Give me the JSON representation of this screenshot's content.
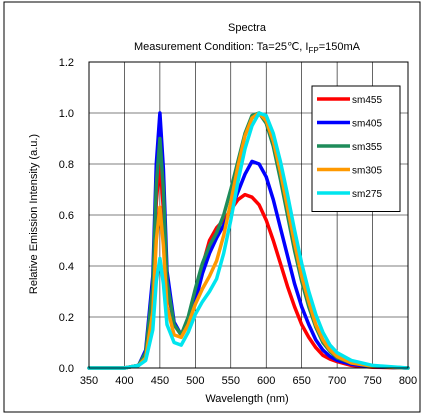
{
  "chart_data": {
    "type": "line",
    "title": "Spectra",
    "subtitle_main": "Measurement Condition: Ta=25℃, I",
    "subtitle_sub": "FP",
    "subtitle_end": "=150mA",
    "xlabel": "Wavelength (nm)",
    "ylabel": "Relative Emission Intensity (a.u.)",
    "xlim": [
      350,
      800
    ],
    "ylim": [
      0,
      1.2
    ],
    "xticks": [
      "350",
      "400",
      "450",
      "500",
      "550",
      "600",
      "650",
      "700",
      "750",
      "800"
    ],
    "yticks": [
      "0.0",
      "0.2",
      "0.4",
      "0.6",
      "0.8",
      "1.0",
      "1.2"
    ],
    "grid": true,
    "legend_position": "top-right",
    "series": [
      {
        "name": "sm455",
        "color": "#ff0000",
        "x": [
          350,
          400,
          420,
          430,
          440,
          445,
          450,
          455,
          460,
          470,
          480,
          490,
          500,
          510,
          520,
          530,
          540,
          550,
          560,
          570,
          580,
          590,
          600,
          610,
          620,
          630,
          640,
          650,
          660,
          670,
          680,
          690,
          700,
          720,
          750,
          800
        ],
        "y": [
          0,
          0,
          0.01,
          0.06,
          0.3,
          0.65,
          0.82,
          0.62,
          0.32,
          0.17,
          0.13,
          0.18,
          0.28,
          0.4,
          0.5,
          0.55,
          0.58,
          0.62,
          0.66,
          0.68,
          0.67,
          0.64,
          0.58,
          0.5,
          0.41,
          0.32,
          0.24,
          0.17,
          0.12,
          0.08,
          0.05,
          0.035,
          0.025,
          0.01,
          0.003,
          0
        ]
      },
      {
        "name": "sm405",
        "color": "#0000ff",
        "x": [
          350,
          400,
          420,
          430,
          440,
          445,
          450,
          455,
          460,
          470,
          480,
          490,
          500,
          510,
          520,
          530,
          540,
          550,
          560,
          570,
          580,
          590,
          600,
          610,
          620,
          630,
          640,
          650,
          660,
          670,
          680,
          690,
          700,
          720,
          750,
          800
        ],
        "y": [
          0,
          0,
          0.01,
          0.07,
          0.36,
          0.8,
          1.0,
          0.78,
          0.38,
          0.18,
          0.13,
          0.17,
          0.26,
          0.37,
          0.45,
          0.51,
          0.56,
          0.62,
          0.69,
          0.76,
          0.81,
          0.8,
          0.75,
          0.66,
          0.55,
          0.44,
          0.33,
          0.24,
          0.17,
          0.11,
          0.07,
          0.045,
          0.03,
          0.015,
          0.005,
          0
        ]
      },
      {
        "name": "sm355",
        "color": "#1e8c5a",
        "x": [
          350,
          400,
          420,
          430,
          440,
          445,
          450,
          455,
          460,
          470,
          480,
          490,
          500,
          510,
          520,
          530,
          540,
          550,
          560,
          570,
          580,
          590,
          600,
          610,
          620,
          630,
          640,
          650,
          660,
          670,
          680,
          690,
          700,
          720,
          750,
          800
        ],
        "y": [
          0,
          0,
          0.01,
          0.06,
          0.32,
          0.72,
          0.9,
          0.7,
          0.34,
          0.17,
          0.13,
          0.2,
          0.31,
          0.41,
          0.48,
          0.53,
          0.6,
          0.7,
          0.81,
          0.92,
          0.99,
          1.0,
          0.96,
          0.87,
          0.74,
          0.6,
          0.46,
          0.34,
          0.24,
          0.16,
          0.1,
          0.065,
          0.04,
          0.02,
          0.006,
          0
        ]
      },
      {
        "name": "sm305",
        "color": "#ff9900",
        "x": [
          350,
          400,
          420,
          430,
          440,
          445,
          450,
          455,
          460,
          470,
          480,
          490,
          500,
          510,
          520,
          530,
          540,
          550,
          560,
          570,
          580,
          590,
          600,
          610,
          620,
          630,
          640,
          650,
          660,
          670,
          680,
          690,
          700,
          720,
          750,
          800
        ],
        "y": [
          0,
          0,
          0.01,
          0.04,
          0.22,
          0.5,
          0.63,
          0.48,
          0.24,
          0.13,
          0.12,
          0.17,
          0.25,
          0.31,
          0.36,
          0.42,
          0.52,
          0.65,
          0.79,
          0.91,
          0.98,
          1.0,
          0.97,
          0.89,
          0.77,
          0.63,
          0.49,
          0.36,
          0.26,
          0.17,
          0.11,
          0.07,
          0.045,
          0.02,
          0.007,
          0
        ]
      },
      {
        "name": "sm275",
        "color": "#00e5ee",
        "x": [
          350,
          400,
          420,
          430,
          440,
          445,
          450,
          455,
          460,
          470,
          480,
          490,
          500,
          510,
          520,
          530,
          540,
          550,
          560,
          570,
          580,
          590,
          600,
          610,
          620,
          630,
          640,
          650,
          660,
          670,
          680,
          690,
          700,
          720,
          750,
          800
        ],
        "y": [
          0,
          0,
          0.01,
          0.03,
          0.15,
          0.34,
          0.43,
          0.33,
          0.17,
          0.1,
          0.09,
          0.14,
          0.21,
          0.26,
          0.3,
          0.35,
          0.45,
          0.58,
          0.73,
          0.86,
          0.95,
          1.0,
          0.99,
          0.92,
          0.81,
          0.68,
          0.54,
          0.41,
          0.3,
          0.21,
          0.14,
          0.09,
          0.06,
          0.03,
          0.01,
          0
        ]
      }
    ]
  }
}
